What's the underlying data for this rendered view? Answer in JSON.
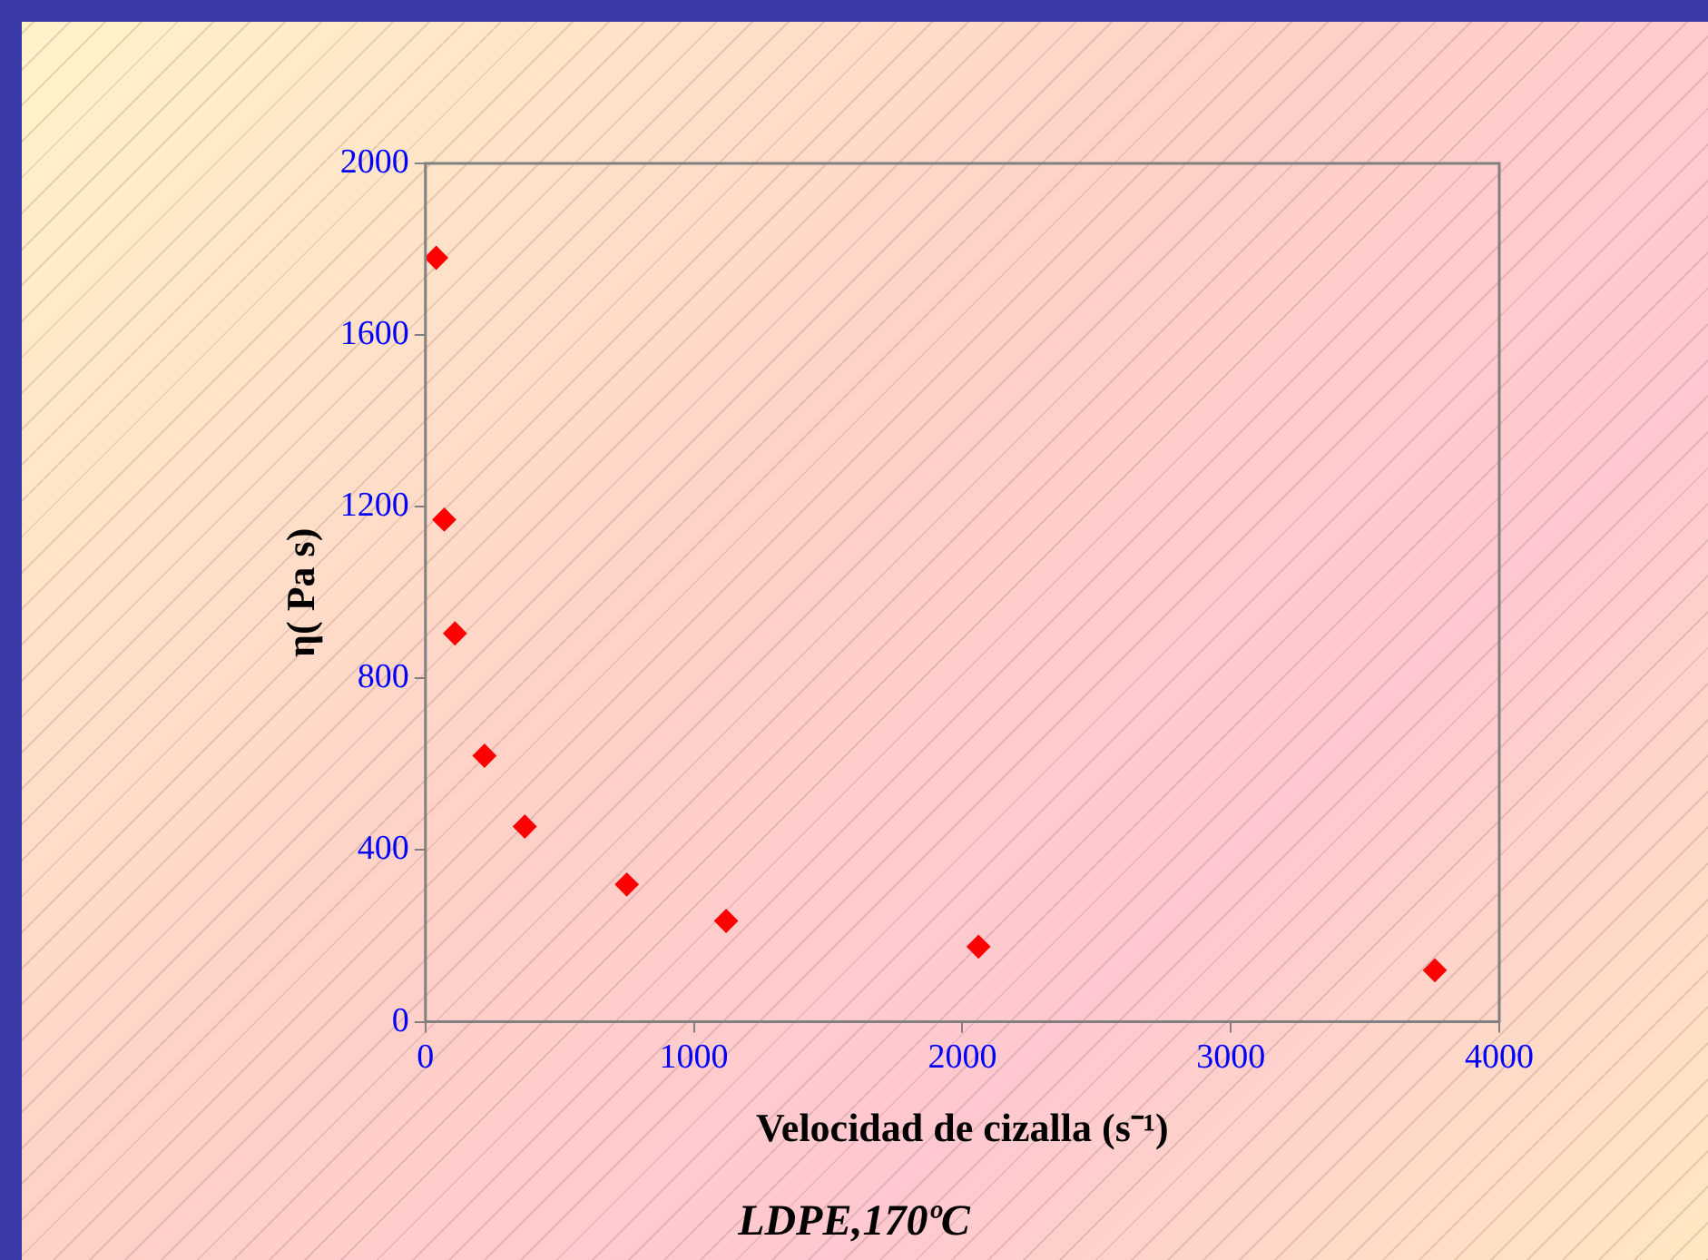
{
  "chart_data": {
    "type": "scatter",
    "title": "LDPE,170ºC",
    "xlabel": "Velocidad de cizalla (s⁻¹)",
    "ylabel": "η( Pa s)",
    "x": [
      40,
      70,
      110,
      220,
      370,
      750,
      1120,
      2060,
      3760
    ],
    "series": [
      {
        "color": "#ff0000",
        "values": [
          1780,
          1170,
          905,
          620,
          455,
          320,
          235,
          175,
          120
        ]
      }
    ],
    "xlim": [
      0,
      4000
    ],
    "xticks": [
      0,
      1000,
      2000,
      3000,
      4000
    ],
    "ylim": [
      0,
      2000
    ],
    "yticks": [
      0,
      400,
      800,
      1200,
      1600,
      2000
    ],
    "grid": false,
    "legend": false,
    "marker": "diamond"
  }
}
